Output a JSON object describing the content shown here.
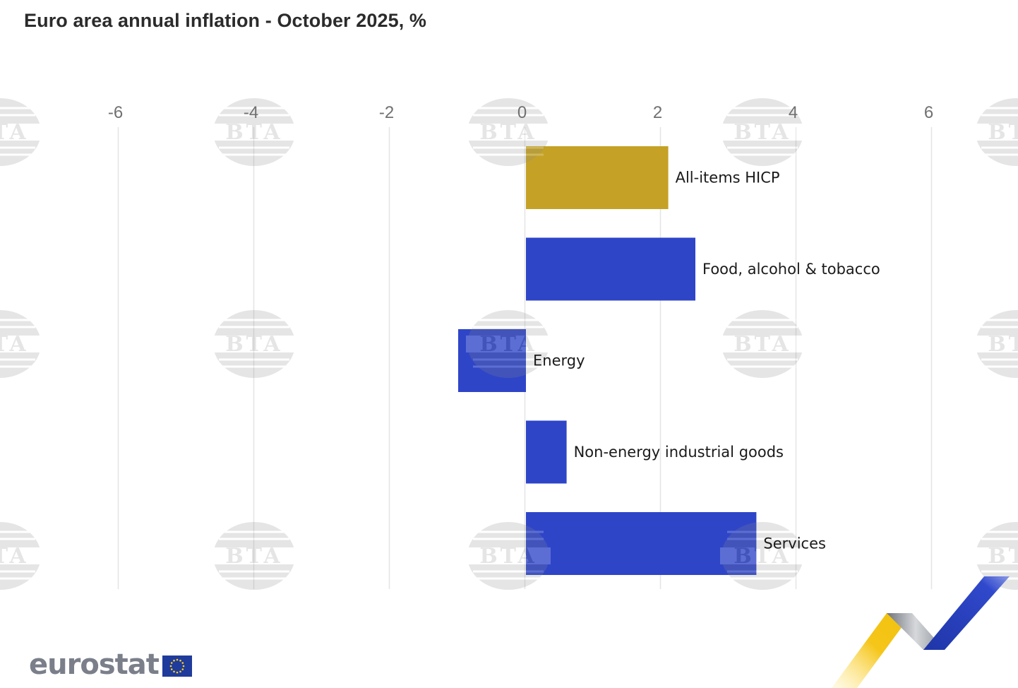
{
  "header": {
    "title": "Euro area annual inflation - October 2025, %"
  },
  "branding": {
    "logo_text": "eurostat",
    "watermark_text": "BTA"
  },
  "colors": {
    "highlight_bar": "#c5a226",
    "component_bar": "#2e45c8",
    "gridline": "#e4e4e4",
    "tick_text": "#707070"
  },
  "chart_data": {
    "type": "bar",
    "orientation": "horizontal",
    "title": "Euro area annual inflation - October 2025, %",
    "xlabel": "",
    "ylabel": "",
    "xlim": [
      -6,
      6
    ],
    "x_ticks": [
      -6,
      -4,
      -2,
      0,
      2,
      4,
      6
    ],
    "grid": true,
    "legend": "none",
    "categories": [
      "All-items HICP",
      "Food, alcohol & tobacco",
      "Energy",
      "Non-energy industrial goods",
      "Services"
    ],
    "values": [
      2.1,
      2.5,
      -1.0,
      0.6,
      3.4
    ],
    "bar_colors": [
      "#c5a226",
      "#2e45c8",
      "#2e45c8",
      "#2e45c8",
      "#2e45c8"
    ]
  }
}
